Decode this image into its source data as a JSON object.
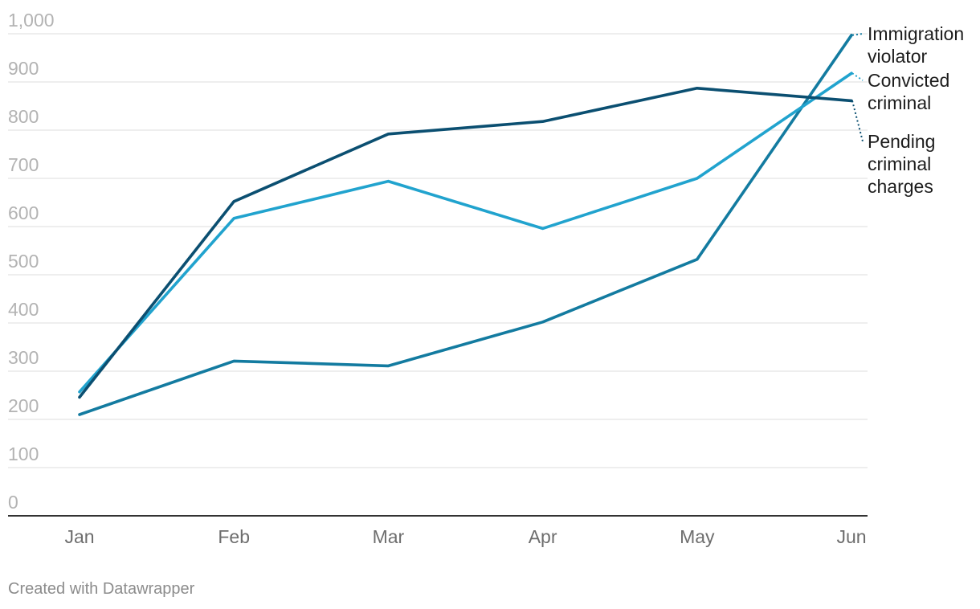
{
  "chart_data": {
    "type": "line",
    "title": "",
    "xlabel": "",
    "ylabel": "",
    "categories": [
      "Jan",
      "Feb",
      "Mar",
      "Apr",
      "May",
      "Jun"
    ],
    "ylim": [
      0,
      1000
    ],
    "yticks": [
      0,
      100,
      200,
      300,
      400,
      500,
      600,
      700,
      800,
      900,
      1000
    ],
    "ytick_labels": [
      "0",
      "100",
      "200",
      "300",
      "400",
      "500",
      "600",
      "700",
      "800",
      "900",
      "1,000"
    ],
    "grid": true,
    "legend": "right",
    "series": [
      {
        "name": "Immigration violator",
        "label_lines": [
          "Immigration",
          "violator"
        ],
        "color": "#137ba0",
        "values": [
          210,
          321,
          311,
          402,
          532,
          997
        ]
      },
      {
        "name": "Convicted criminal",
        "label_lines": [
          "Convicted",
          "criminal"
        ],
        "color": "#21a3ce",
        "values": [
          257,
          617,
          694,
          596,
          700,
          918
        ]
      },
      {
        "name": "Pending criminal charges",
        "label_lines": [
          "Pending",
          "criminal",
          "charges"
        ],
        "color": "#0b4f71",
        "values": [
          246,
          652,
          792,
          818,
          887,
          861
        ]
      }
    ]
  },
  "footer": "Created with Datawrapper"
}
